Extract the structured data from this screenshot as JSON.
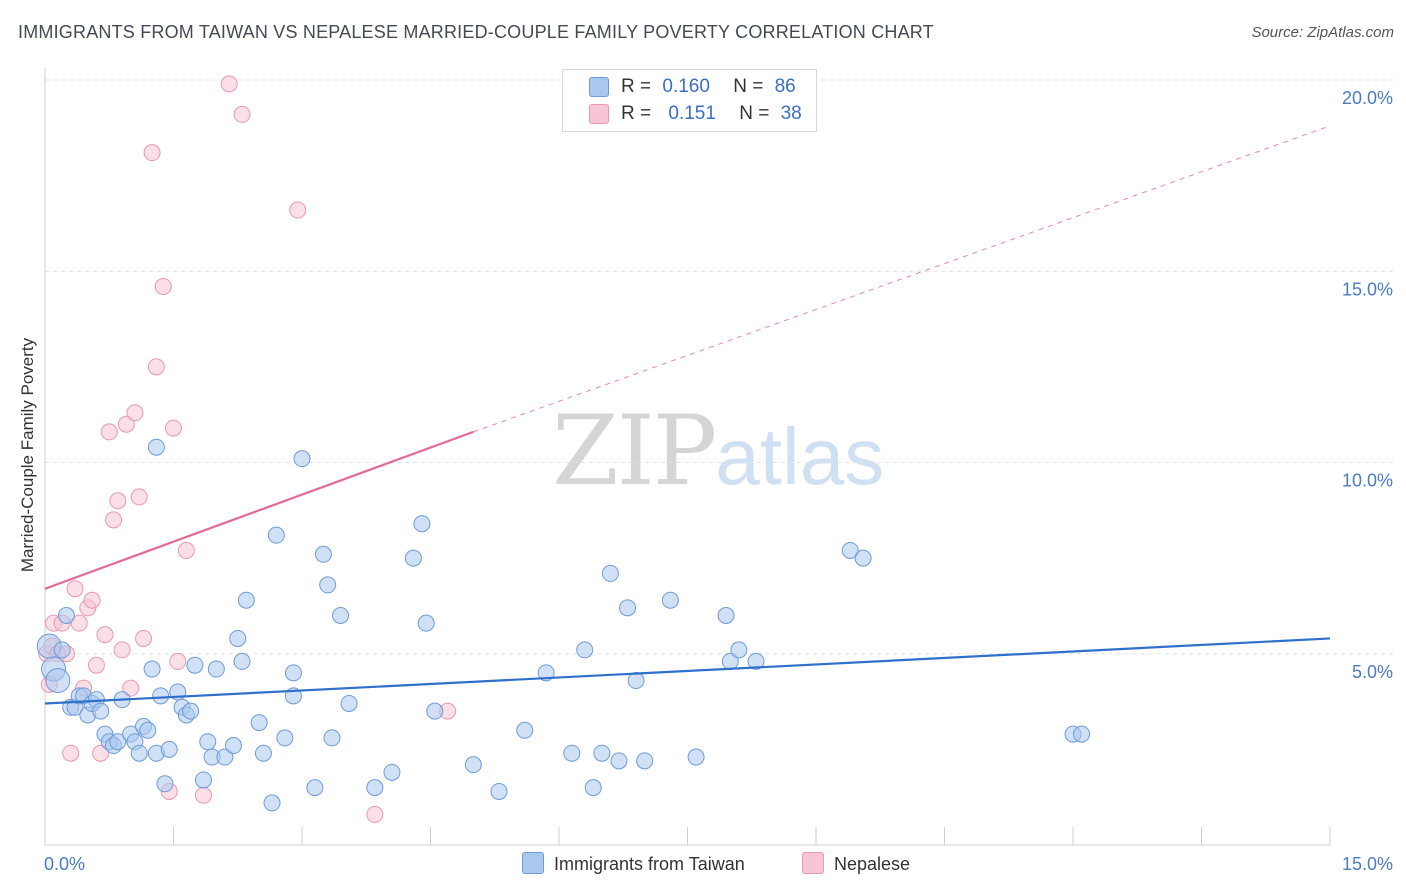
{
  "title": "IMMIGRANTS FROM TAIWAN VS NEPALESE MARRIED-COUPLE FAMILY POVERTY CORRELATION CHART",
  "source": "Source: ZipAtlas.com",
  "watermark": {
    "zip": "ZIP",
    "atlas": "atlas"
  },
  "legend": {
    "r_label": "R =",
    "n_label": "N =",
    "series": [
      {
        "r": "0.160",
        "n": "86"
      },
      {
        "r": "0.151",
        "n": "38"
      }
    ]
  },
  "bottom_legend": {
    "taiwan": "Immigrants from Taiwan",
    "nepalese": "Nepalese"
  },
  "colors": {
    "taiwan_fill": "#aac8ef",
    "taiwan_stroke": "#6e9bd8",
    "taiwan_line": "#2f70c9",
    "nepalese_fill": "#f7c5d3",
    "nepalese_stroke": "#e898b2",
    "nepalese_line": "#e2699a",
    "grid": "#e2e2e2",
    "tick_text": "#4a7cc0"
  },
  "chart_data": {
    "type": "scatter",
    "title": "IMMIGRANTS FROM TAIWAN VS NEPALESE MARRIED-COUPLE FAMILY POVERTY CORRELATION CHART",
    "xlabel": "",
    "ylabel": "Married-Couple Family Poverty",
    "xlim": [
      0,
      15
    ],
    "ylim": [
      0,
      20
    ],
    "x_tick_labels": [
      "0.0%",
      "15.0%"
    ],
    "y_ticks": [
      5,
      10,
      15,
      20
    ],
    "y_tick_labels": [
      "5.0%",
      "10.0%",
      "15.0%",
      "20.0%"
    ],
    "grid": "horizontal dashed",
    "legend_position": "top-center",
    "series": [
      {
        "name": "Immigrants from Taiwan",
        "r": 0.16,
        "n": 86,
        "trend": {
          "x": [
            0,
            15
          ],
          "y": [
            3.7,
            5.4
          ]
        },
        "points": [
          [
            0.05,
            5.2
          ],
          [
            0.1,
            4.6
          ],
          [
            0.15,
            4.3
          ],
          [
            0.2,
            5.1
          ],
          [
            0.25,
            6.0
          ],
          [
            0.3,
            3.6
          ],
          [
            0.35,
            3.6
          ],
          [
            0.4,
            3.9
          ],
          [
            0.45,
            3.9
          ],
          [
            0.5,
            3.4
          ],
          [
            0.55,
            3.7
          ],
          [
            0.6,
            3.8
          ],
          [
            0.65,
            3.5
          ],
          [
            0.7,
            2.9
          ],
          [
            0.75,
            2.7
          ],
          [
            0.8,
            2.6
          ],
          [
            0.85,
            2.7
          ],
          [
            0.9,
            3.8
          ],
          [
            1.0,
            2.9
          ],
          [
            1.05,
            2.7
          ],
          [
            1.1,
            2.4
          ],
          [
            1.15,
            3.1
          ],
          [
            1.2,
            3.0
          ],
          [
            1.25,
            4.6
          ],
          [
            1.3,
            2.4
          ],
          [
            1.35,
            3.9
          ],
          [
            1.4,
            1.6
          ],
          [
            1.45,
            2.5
          ],
          [
            1.55,
            4.0
          ],
          [
            1.6,
            3.6
          ],
          [
            1.65,
            3.4
          ],
          [
            1.7,
            3.5
          ],
          [
            1.75,
            4.7
          ],
          [
            1.85,
            1.7
          ],
          [
            1.9,
            2.7
          ],
          [
            1.95,
            2.3
          ],
          [
            2.0,
            4.6
          ],
          [
            2.1,
            2.3
          ],
          [
            2.2,
            2.6
          ],
          [
            2.25,
            5.4
          ],
          [
            2.3,
            4.8
          ],
          [
            2.35,
            6.4
          ],
          [
            2.5,
            3.2
          ],
          [
            2.55,
            2.4
          ],
          [
            2.65,
            1.1
          ],
          [
            2.7,
            8.1
          ],
          [
            2.8,
            2.8
          ],
          [
            2.9,
            3.9
          ],
          [
            3.0,
            10.1
          ],
          [
            3.15,
            1.5
          ],
          [
            3.25,
            7.6
          ],
          [
            3.3,
            6.8
          ],
          [
            3.35,
            2.8
          ],
          [
            3.45,
            6.0
          ],
          [
            3.55,
            3.7
          ],
          [
            3.85,
            1.5
          ],
          [
            4.05,
            1.9
          ],
          [
            4.3,
            7.5
          ],
          [
            4.4,
            8.4
          ],
          [
            4.45,
            5.8
          ],
          [
            4.55,
            3.5
          ],
          [
            1.3,
            10.4
          ],
          [
            2.9,
            4.5
          ],
          [
            5.0,
            2.1
          ],
          [
            5.3,
            1.4
          ],
          [
            5.6,
            3.0
          ],
          [
            5.85,
            4.5
          ],
          [
            6.15,
            2.4
          ],
          [
            6.3,
            5.1
          ],
          [
            6.4,
            1.5
          ],
          [
            6.5,
            2.4
          ],
          [
            6.6,
            7.1
          ],
          [
            6.7,
            2.2
          ],
          [
            6.8,
            6.2
          ],
          [
            6.9,
            4.3
          ],
          [
            7.0,
            2.2
          ],
          [
            7.3,
            6.4
          ],
          [
            7.6,
            2.3
          ],
          [
            7.95,
            6.0
          ],
          [
            8.0,
            4.8
          ],
          [
            8.1,
            5.1
          ],
          [
            8.3,
            4.8
          ],
          [
            9.4,
            7.7
          ],
          [
            9.55,
            7.5
          ],
          [
            12.0,
            2.9
          ],
          [
            12.1,
            2.9
          ]
        ]
      },
      {
        "name": "Nepalese",
        "r": 0.151,
        "n": 38,
        "trend": {
          "x": [
            0,
            5
          ],
          "y": [
            6.7,
            10.8
          ],
          "dashed_extension": {
            "x": [
              5,
              15
            ],
            "y": [
              10.8,
              18.8
            ]
          }
        },
        "points": [
          [
            0.02,
            5.0
          ],
          [
            0.05,
            4.2
          ],
          [
            0.08,
            5.2
          ],
          [
            0.1,
            5.8
          ],
          [
            0.15,
            5.0
          ],
          [
            0.2,
            5.8
          ],
          [
            0.25,
            5.0
          ],
          [
            0.3,
            2.4
          ],
          [
            0.35,
            6.7
          ],
          [
            0.4,
            5.8
          ],
          [
            0.45,
            4.1
          ],
          [
            0.5,
            6.2
          ],
          [
            0.55,
            6.4
          ],
          [
            0.6,
            4.7
          ],
          [
            0.65,
            2.4
          ],
          [
            0.7,
            5.5
          ],
          [
            0.75,
            10.8
          ],
          [
            0.8,
            8.5
          ],
          [
            0.85,
            9.0
          ],
          [
            0.9,
            5.1
          ],
          [
            0.95,
            11.0
          ],
          [
            1.0,
            4.1
          ],
          [
            1.05,
            11.3
          ],
          [
            1.1,
            9.1
          ],
          [
            1.15,
            5.4
          ],
          [
            1.25,
            18.1
          ],
          [
            1.3,
            12.5
          ],
          [
            1.38,
            14.6
          ],
          [
            1.45,
            1.4
          ],
          [
            1.5,
            10.9
          ],
          [
            1.55,
            4.8
          ],
          [
            1.65,
            7.7
          ],
          [
            1.85,
            1.3
          ],
          [
            2.15,
            19.9
          ],
          [
            2.3,
            19.1
          ],
          [
            2.95,
            16.6
          ],
          [
            3.85,
            0.8
          ],
          [
            4.7,
            3.5
          ]
        ]
      }
    ]
  }
}
